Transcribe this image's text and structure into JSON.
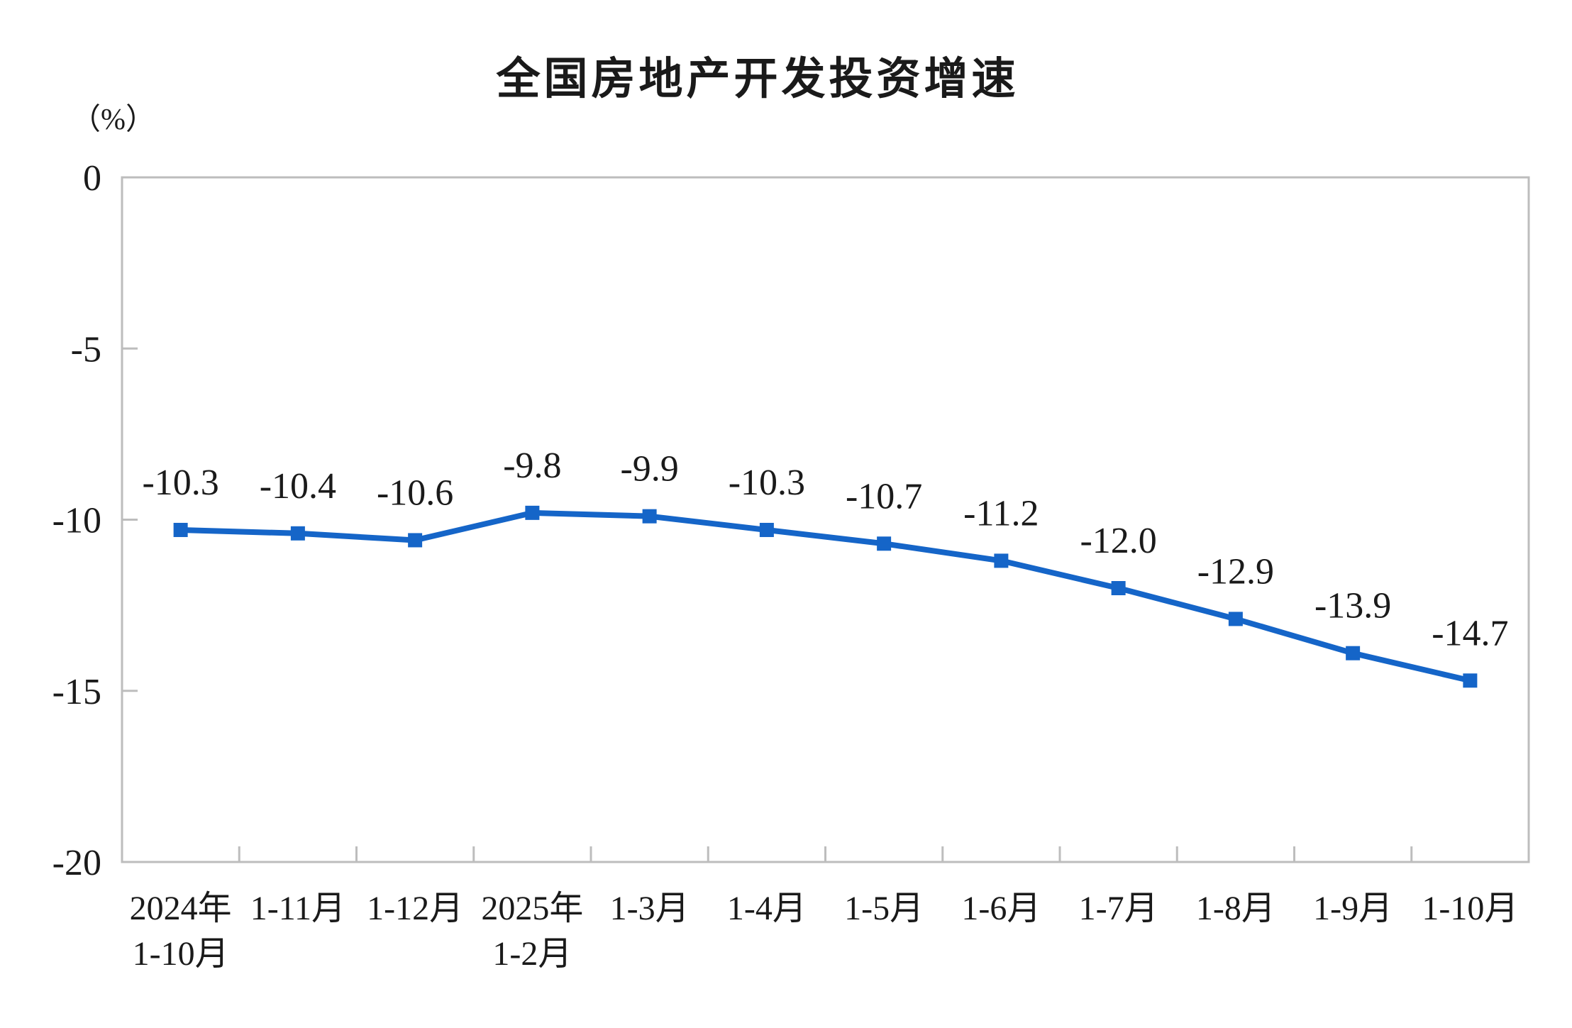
{
  "title": "全国房地产开发投资增速",
  "y_unit_label": "（%）",
  "colors": {
    "series": "#1565c8",
    "axis": "#bdbdbd",
    "text": "#1a1a1a"
  },
  "chart_data": {
    "type": "line",
    "title": "全国房地产开发投资增速",
    "ylabel": "（%）",
    "xlabel": "",
    "ylim": [
      -20,
      0
    ],
    "yticks": [
      0,
      -5,
      -10,
      -15,
      -20
    ],
    "ytick_labels": [
      "0",
      "-5",
      "-10",
      "-15",
      "-20"
    ],
    "grid": false,
    "legend": false,
    "marker": "square",
    "series_color": "#1565c8",
    "categories": [
      [
        "2024年",
        "1-10月"
      ],
      [
        "1-11月"
      ],
      [
        "1-12月"
      ],
      [
        "2025年",
        "1-2月"
      ],
      [
        "1-3月"
      ],
      [
        "1-4月"
      ],
      [
        "1-5月"
      ],
      [
        "1-6月"
      ],
      [
        "1-7月"
      ],
      [
        "1-8月"
      ],
      [
        "1-9月"
      ],
      [
        "1-10月"
      ]
    ],
    "values": [
      -10.3,
      -10.4,
      -10.6,
      -9.8,
      -9.9,
      -10.3,
      -10.7,
      -11.2,
      -12.0,
      -12.9,
      -13.9,
      -14.7
    ],
    "data_labels": [
      "-10.3",
      "-10.4",
      "-10.6",
      "-9.8",
      "-9.9",
      "-10.3",
      "-10.7",
      "-11.2",
      "-12.0",
      "-12.9",
      "-13.9",
      "-14.7"
    ]
  }
}
